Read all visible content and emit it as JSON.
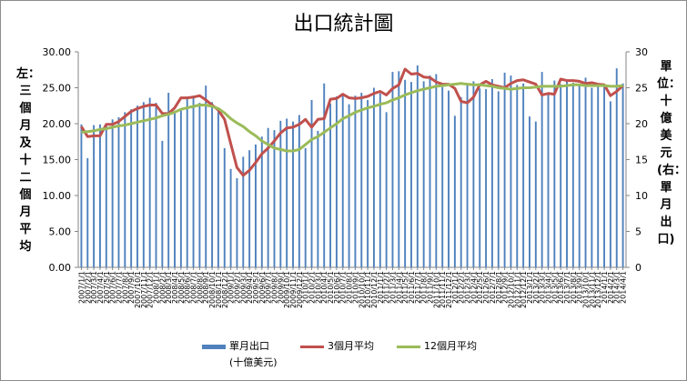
{
  "chart_data": {
    "type": "bar",
    "title": "出口統計圖",
    "left_axis_label": "左：三個月及十二個月平均",
    "right_axis_label": "單位：十億美元(右：單月出口)",
    "left_ylim": [
      0,
      30
    ],
    "right_ylim": [
      0,
      30
    ],
    "left_ticks": [
      "0.00",
      "5.00",
      "10.00",
      "15.00",
      "20.00",
      "25.00",
      "30.00"
    ],
    "right_ticks": [
      "0",
      "5",
      "10",
      "15",
      "20",
      "25",
      "30"
    ],
    "grid": false,
    "legend_position": "bottom",
    "categories": [
      "2007/1/1",
      "2007/2/1",
      "2007/3/1",
      "2007/4/1",
      "2007/5/1",
      "2007/6/1",
      "2007/7/1",
      "2007/8/1",
      "2007/9/1",
      "2007/10/1",
      "2007/11/1",
      "2007/12/1",
      "2008/1/1",
      "2008/2/1",
      "2008/3/1",
      "2008/4/1",
      "2008/5/1",
      "2008/6/1",
      "2008/7/1",
      "2008/8/1",
      "2008/9/1",
      "2008/10/1",
      "2008/11/1",
      "2008/12/1",
      "2009/1/1",
      "2009/2/1",
      "2009/3/1",
      "2009/4/1",
      "2009/5/1",
      "2009/6/1",
      "2009/7/1",
      "2009/8/1",
      "2009/9/1",
      "2009/10/1",
      "2009/11/1",
      "2009/12/1",
      "2010/1/1",
      "2010/2/1",
      "2010/3/1",
      "2010/4/1",
      "2010/5/1",
      "2010/6/1",
      "2010/7/1",
      "2010/8/1",
      "2010/9/1",
      "2010/10/1",
      "2010/11/1",
      "2010/12/1",
      "2011/1/1",
      "2011/2/1",
      "2011/3/1",
      "2011/4/1",
      "2011/5/1",
      "2011/6/1",
      "2011/7/1",
      "2011/8/1",
      "2011/9/1",
      "2011/10/1",
      "2011/11/1",
      "2011/12/1",
      "2012/1/1",
      "2012/2/1",
      "2012/3/1",
      "2012/4/1",
      "2012/5/1",
      "2012/6/1",
      "2012/7/1",
      "2012/8/1",
      "2012/9/1",
      "2012/10/1",
      "2012/11/1",
      "2012/12/1",
      "2013/1/1",
      "2013/2/1",
      "2013/3/1",
      "2013/4/1",
      "2013/5/1",
      "2013/6/1",
      "2013/7/1",
      "2013/8/1",
      "2013/9/1",
      "2013/10/1",
      "2013/11/1",
      "2013/12/1",
      "2014/1/1",
      "2014/2/1",
      "2014/3/1",
      "2014/4/1"
    ],
    "x_tick_labels": [
      "2007/1/1",
      "2007/2/1",
      "2007/3/1",
      "2007/4/1",
      "2007/5/1",
      "2007/6/1",
      "2007/7/1",
      "2007/8/1",
      "2007/9/1",
      "2007/10/1",
      "2007/11/1",
      "2007/12/1",
      "2008/1/1",
      "2008/2/1",
      "2008/3/1",
      "2008/4/1",
      "2008/5/1",
      "2008/6/1",
      "2008/7/1",
      "2008/8/1",
      "2008/9/1",
      "2008/10/1",
      "2008/11/1",
      "2008/12/1",
      "2009/1/1",
      "2009/2/1",
      "2009/3/1",
      "2009/4/1",
      "2009/5/1",
      "2009/6/1",
      "2009/7/1",
      "2009/8/1",
      "2009/9/1",
      "2009/10/1",
      "2009/11/1",
      "2009/12/1",
      "2010/1/1",
      "2010/2/1",
      "2010/3/1",
      "2010/4/1",
      "2010/5/1",
      "2010/6/1",
      "2010/7/1",
      "2010/8/1",
      "2010/9/1",
      "2010/10/1",
      "2010/11/1",
      "2010/12/1",
      "2011/1/1",
      "2011/2/1",
      "2011/3/1",
      "2011/4/1",
      "2011/5/1",
      "2011/6/1",
      "2011/7/1",
      "2011/8/1",
      "2011/9/1",
      "2011/10/1",
      "2011/11/1",
      "2011/12/1",
      "2012/1/1",
      "2012/2/1",
      "2012/3/1",
      "2012/4/1",
      "2012/5/1",
      "2012/6/1",
      "2012/7/1",
      "2012/8/1",
      "2012/9/1",
      "2012/10/1",
      "2012/11/1",
      "2012/12/1",
      "2013/1/1",
      "2013/2/1",
      "2013/3/1",
      "2013/4/1",
      "2013/5/1",
      "2013/6/1",
      "2013/7/1",
      "2013/8/1",
      "2013/9/1",
      "2013/10/1",
      "2013/11/1",
      "2013/12/1",
      "2014/1/1",
      "2014/2/1",
      "2014/3/1",
      "2014/4/1"
    ],
    "series": [
      {
        "name": "單月出口\n(十億美元)",
        "type": "bar",
        "axis": "right",
        "color": "#4f81bd",
        "values": [
          19.9,
          15.2,
          19.8,
          19.9,
          20.0,
          20.6,
          20.9,
          21.6,
          22.0,
          22.5,
          23.0,
          23.6,
          22.9,
          17.6,
          24.3,
          21.8,
          21.9,
          23.6,
          23.9,
          22.9,
          25.3,
          23.0,
          21.8,
          16.6,
          13.7,
          12.4,
          15.4,
          16.3,
          17.1,
          18.2,
          19.4,
          19.1,
          20.4,
          20.7,
          20.3,
          21.2,
          16.6,
          23.3,
          19.0,
          25.6,
          22.8,
          23.8,
          24.2,
          22.7,
          23.9,
          24.3,
          23.3,
          25.0,
          24.2,
          21.6,
          27.2,
          27.3,
          26.1,
          25.8,
          28.1,
          25.9,
          26.7,
          26.9,
          25.1,
          24.6,
          21.1,
          23.7,
          25.6,
          25.9,
          24.9,
          24.8,
          26.2,
          24.5,
          27.1,
          26.7,
          25.4,
          25.6,
          21.0,
          20.3,
          27.2,
          24.2,
          26.0,
          25.5,
          26.1,
          25.7,
          25.4,
          26.4,
          25.0,
          25.3,
          25.2,
          23.1,
          27.7,
          25.6
        ]
      },
      {
        "name": "3個月平均",
        "type": "line",
        "axis": "left",
        "color": "#c0504d",
        "values": [
          19.6,
          18.2,
          18.3,
          18.3,
          19.9,
          19.9,
          20.3,
          21.0,
          21.7,
          22.1,
          22.4,
          22.6,
          22.6,
          21.4,
          21.4,
          22.2,
          23.6,
          23.6,
          23.7,
          23.9,
          23.3,
          22.6,
          21.9,
          20.6,
          17.2,
          13.9,
          12.8,
          13.5,
          14.6,
          15.8,
          16.6,
          17.6,
          18.7,
          19.4,
          19.5,
          19.9,
          20.6,
          19.5,
          20.6,
          20.7,
          23.4,
          23.5,
          24.1,
          23.6,
          23.5,
          23.6,
          23.8,
          24.2,
          24.5,
          24.0,
          24.9,
          25.4,
          27.6,
          26.9,
          27.0,
          26.5,
          26.4,
          25.8,
          25.5,
          25.5,
          24.9,
          23.1,
          22.9,
          23.7,
          25.4,
          25.9,
          25.4,
          25.2,
          25.0,
          25.6,
          26.0,
          26.1,
          25.8,
          25.5,
          24.0,
          24.2,
          24.1,
          26.2,
          26.0,
          26.0,
          25.9,
          25.6,
          25.7,
          25.5,
          25.4,
          23.9,
          24.5,
          25.3
        ]
      },
      {
        "name": "12個月平均",
        "type": "line",
        "axis": "left",
        "color": "#9bbb59",
        "values": [
          18.8,
          18.9,
          19.0,
          19.2,
          19.3,
          19.5,
          19.7,
          19.8,
          20.0,
          20.2,
          20.4,
          20.6,
          20.8,
          21.1,
          21.3,
          21.6,
          22.0,
          22.2,
          22.4,
          22.6,
          22.6,
          22.4,
          22.1,
          21.5,
          20.7,
          20.1,
          19.6,
          18.9,
          18.3,
          17.6,
          17.1,
          16.6,
          16.4,
          16.2,
          16.2,
          16.4,
          17.1,
          17.8,
          18.2,
          18.8,
          19.4,
          20.0,
          20.7,
          21.1,
          21.6,
          21.9,
          22.2,
          22.4,
          22.7,
          22.9,
          23.3,
          23.6,
          24.0,
          24.3,
          24.6,
          24.8,
          25.0,
          25.2,
          25.3,
          25.4,
          25.5,
          25.6,
          25.5,
          25.4,
          25.4,
          25.3,
          25.2,
          25.0,
          24.9,
          24.8,
          24.9,
          25.0,
          25.0,
          25.1,
          25.2,
          25.2,
          25.2,
          25.2,
          25.3,
          25.4,
          25.4,
          25.3,
          25.3,
          25.3,
          25.3,
          25.2,
          25.2,
          25.3
        ]
      }
    ]
  },
  "legend": {
    "bars_label": "單月出口",
    "bars_sublabel": "(十億美元)",
    "ma3_label": "3個月平均",
    "ma12_label": "12個月平均"
  }
}
